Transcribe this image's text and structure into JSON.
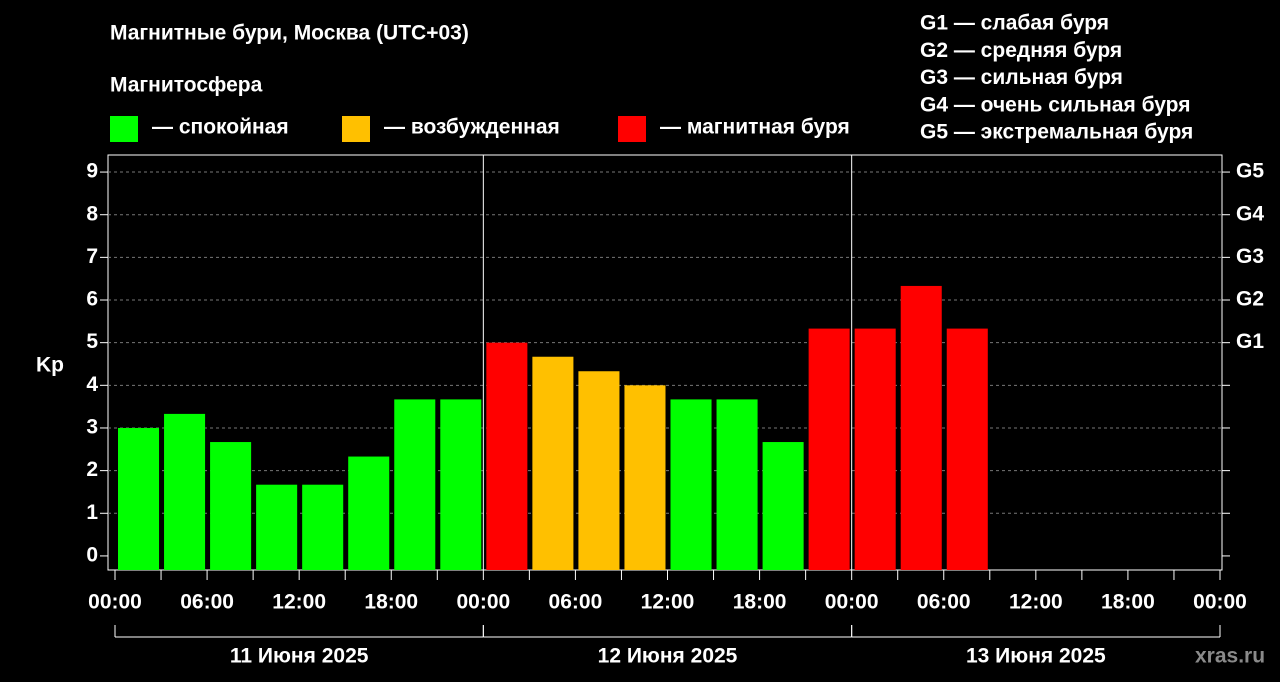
{
  "chart_data": {
    "type": "bar",
    "title": "Магнитные бури, Москва (UTC+03)",
    "legend_title": "Магнитосфера",
    "legend": [
      {
        "label": "— спокойная",
        "color": "#00ff00"
      },
      {
        "label": "— возбужденная",
        "color": "#ffc000"
      },
      {
        "label": "— магнитная буря",
        "color": "#ff0000"
      }
    ],
    "storm_scale": [
      "G1 — слабая буря",
      "G2 — средняя буря",
      "G3 — сильная буря",
      "G4 — очень сильная буря",
      "G5 — экстремальная буря"
    ],
    "y_label": "Kp",
    "x": [
      0,
      3,
      6,
      9,
      12,
      15,
      18,
      21,
      24,
      27,
      30,
      33,
      36,
      39,
      42,
      45,
      48,
      51,
      54
    ],
    "values": [
      3.0,
      3.33,
      2.67,
      1.67,
      1.67,
      2.33,
      3.67,
      3.67,
      5.0,
      4.67,
      4.33,
      4.0,
      3.67,
      3.67,
      2.67,
      5.33,
      5.33,
      6.33,
      5.33
    ],
    "colors": [
      "#00ff00",
      "#00ff00",
      "#00ff00",
      "#00ff00",
      "#00ff00",
      "#00ff00",
      "#00ff00",
      "#00ff00",
      "#ff0000",
      "#ffc000",
      "#ffc000",
      "#ffc000",
      "#00ff00",
      "#00ff00",
      "#00ff00",
      "#ff0000",
      "#ff0000",
      "#ff0000",
      "#ff0000"
    ],
    "bar_width": 3,
    "xlim": [
      0,
      72
    ],
    "xticks": [
      {
        "value": 0,
        "label": "00:00"
      },
      {
        "value": 6,
        "label": "06:00"
      },
      {
        "value": 12,
        "label": "12:00"
      },
      {
        "value": 18,
        "label": "18:00"
      },
      {
        "value": 24,
        "label": "00:00"
      },
      {
        "value": 30,
        "label": "06:00"
      },
      {
        "value": 36,
        "label": "12:00"
      },
      {
        "value": 42,
        "label": "18:00"
      },
      {
        "value": 48,
        "label": "00:00"
      },
      {
        "value": 54,
        "label": "06:00"
      },
      {
        "value": 60,
        "label": "12:00"
      },
      {
        "value": 66,
        "label": "18:00"
      },
      {
        "value": 72,
        "label": "00:00"
      }
    ],
    "xminorticks": [
      3,
      9,
      15,
      21,
      27,
      33,
      39,
      45,
      51,
      57,
      63,
      69
    ],
    "days": [
      {
        "label": "11 Июня 2025",
        "start": 0,
        "end": 24
      },
      {
        "label": "12 Июня 2025",
        "start": 24,
        "end": 48
      },
      {
        "label": "13 Июня 2025",
        "start": 48,
        "end": 72
      }
    ],
    "ylim": [
      -0.33,
      9.4
    ],
    "yticks": [
      0,
      1,
      2,
      3,
      4,
      5,
      6,
      7,
      8,
      9
    ],
    "y2lim": [
      -0.33,
      9.4
    ],
    "y2ticks": [
      {
        "value": 5,
        "label": "G1"
      },
      {
        "value": 6,
        "label": "G2"
      },
      {
        "value": 7,
        "label": "G3"
      },
      {
        "value": 8,
        "label": "G4"
      },
      {
        "value": 9,
        "label": "G5"
      }
    ],
    "grid": true,
    "watermark": "xras.ru"
  }
}
